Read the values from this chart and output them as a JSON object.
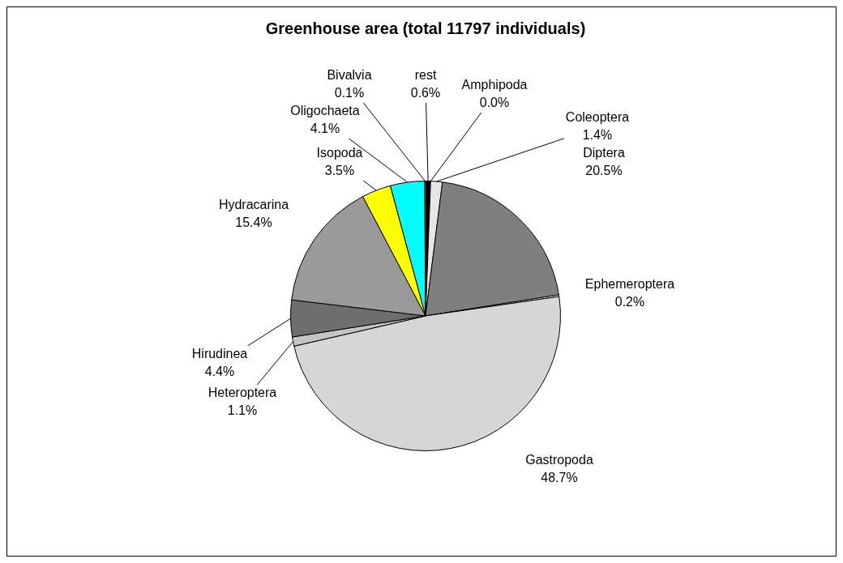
{
  "chart_data": {
    "type": "pie",
    "title": "Greenhouse area (total 11797 individuals)",
    "categories": [
      "rest",
      "Amphipoda",
      "Coleoptera",
      "Diptera",
      "Ephemeroptera",
      "Gastropoda",
      "Heteroptera",
      "Hirudinea",
      "Hydracarina",
      "Isopoda",
      "Oligochaeta",
      "Bivalvia"
    ],
    "values": [
      0.6,
      0.0,
      1.4,
      20.5,
      0.2,
      48.7,
      1.1,
      4.4,
      15.4,
      3.5,
      4.1,
      0.1
    ],
    "value_labels": [
      "0.6%",
      "0.0%",
      "1.4%",
      "20.5%",
      "0.2%",
      "48.7%",
      "1.1%",
      "4.4%",
      "15.4%",
      "3.5%",
      "4.1%",
      "0.1%"
    ],
    "colors": [
      "#000000",
      "#ffffff",
      "#e6e6e6",
      "#7f7f7f",
      "#ffffff",
      "#d6d6d6",
      "#c4c4c4",
      "#6e6e6e",
      "#9a9a9a",
      "#ffff00",
      "#00ffff",
      "#ffffff"
    ],
    "legend": false
  }
}
